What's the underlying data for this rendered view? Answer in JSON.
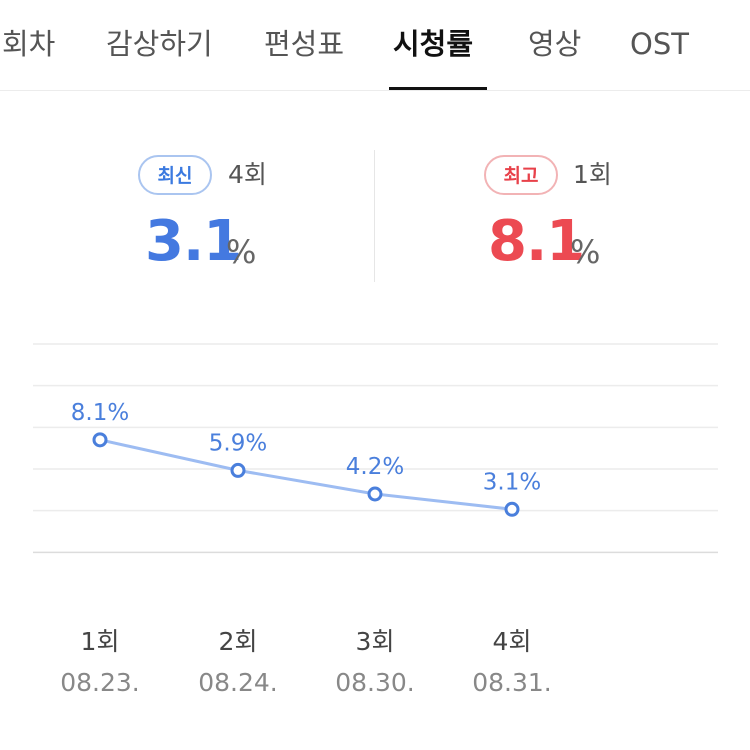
{
  "tabs": [
    {
      "label": "회차",
      "active": false
    },
    {
      "label": "감상하기",
      "active": false
    },
    {
      "label": "편성표",
      "active": false
    },
    {
      "label": "시청률",
      "active": true
    },
    {
      "label": "영상",
      "active": false
    },
    {
      "label": "OST",
      "active": false
    }
  ],
  "summary": {
    "latest": {
      "badge": "최신",
      "episode": "4회",
      "value": "3.1",
      "unit": "%"
    },
    "best": {
      "badge": "최고",
      "episode": "1회",
      "value": "8.1",
      "unit": "%"
    }
  },
  "colors": {
    "latest": "#4479e0",
    "best": "#ec4a52",
    "line": "#9dbcf2",
    "point": "#4a7fdc"
  },
  "chart_data": {
    "type": "line",
    "categories": [
      "1회",
      "2회",
      "3회",
      "4회"
    ],
    "dates": [
      "08.23.",
      "08.24.",
      "08.30.",
      "08.31."
    ],
    "values": [
      8.1,
      5.9,
      4.2,
      3.1
    ],
    "data_labels": [
      "8.1%",
      "5.9%",
      "4.2%",
      "3.1%"
    ],
    "ylim": [
      -3,
      15
    ],
    "grid": true,
    "gridlines": [
      0,
      3,
      6,
      9,
      12,
      15
    ]
  }
}
